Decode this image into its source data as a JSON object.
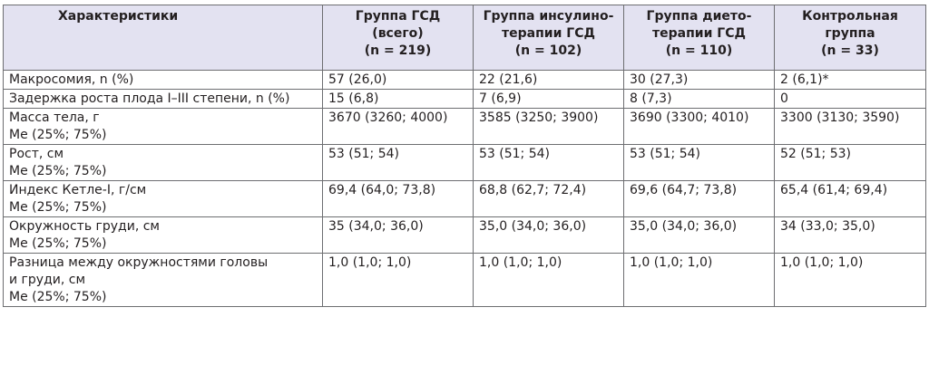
{
  "table": {
    "headers": [
      "Характеристики",
      "Группа ГСД\n(всего)\n(n = 219)",
      "Группа инсулино-\nтерапии ГСД\n(n = 102)",
      "Группа дието-\nтерапии ГСД\n(n = 110)",
      "Контрольная\nгруппа\n(n = 33)"
    ],
    "rows": [
      [
        "Макросомия, n (%)",
        "57 (26,0)",
        "22 (21,6)",
        "30 (27,3)",
        "2 (6,1)*"
      ],
      [
        "Задержка роста плода I–III степени, n (%)",
        "15 (6,8)",
        "7 (6,9)",
        "8 (7,3)",
        "0"
      ],
      [
        "Масса тела, г\nМе (25%; 75%)",
        "3670 (3260; 4000)",
        "3585 (3250; 3900)",
        "3690 (3300; 4010)",
        "3300 (3130; 3590)"
      ],
      [
        "Рост, см\nМе (25%; 75%)",
        "53 (51; 54)",
        "53 (51; 54)",
        "53 (51; 54)",
        "52 (51; 53)"
      ],
      [
        "Индекс Кетле-I, г/см\nМе (25%; 75%)",
        "69,4 (64,0; 73,8)",
        "68,8 (62,7; 72,4)",
        "69,6 (64,7; 73,8)",
        "65,4 (61,4; 69,4)"
      ],
      [
        "Окружность груди, см\nМе (25%; 75%)",
        "35 (34,0; 36,0)",
        "35,0 (34,0; 36,0)",
        "35,0 (34,0; 36,0)",
        "34 (33,0; 35,0)"
      ],
      [
        "Разница между окружностями головы\nи груди, см\nМе (25%; 75%)",
        "1,0 (1,0; 1,0)",
        "1,0 (1,0; 1,0)",
        "1,0 (1,0; 1,0)",
        "1,0 (1,0; 1,0)"
      ]
    ]
  },
  "colors": {
    "header_background": "#e3e2f1",
    "border": "#6d6e71",
    "text": "#231f20"
  }
}
